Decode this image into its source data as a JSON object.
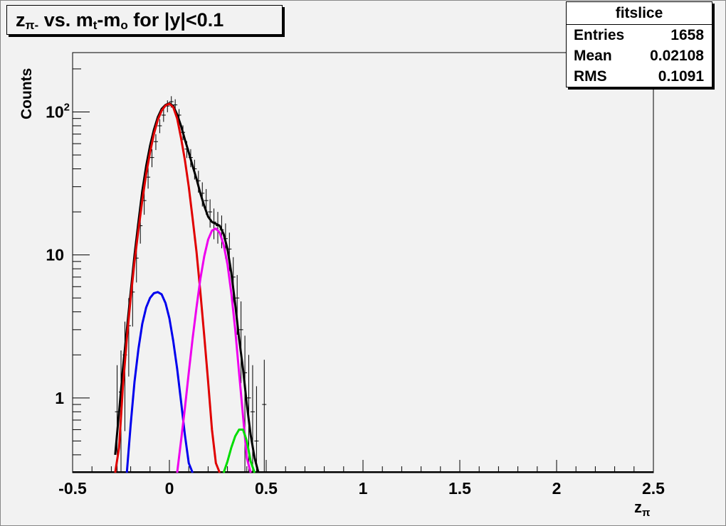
{
  "chart_data": {
    "type": "line",
    "title": {
      "prefix": "z",
      "prefix_sub": "π-",
      "mid": " vs. m",
      "mid_sub": "t",
      "dash": "-m",
      "dash_sub": "o",
      "suffix": " for |y|<0.1"
    },
    "xlabel": "z",
    "xlabel_sub": "π",
    "ylabel": "Counts",
    "xlim": [
      -0.5,
      2.5
    ],
    "ylim": [
      0.3,
      260
    ],
    "yscale": "log",
    "grid": false,
    "x_ticks": [
      {
        "v": -0.5,
        "label": "-0.5"
      },
      {
        "v": 0,
        "label": "0"
      },
      {
        "v": 0.5,
        "label": "0.5"
      },
      {
        "v": 1,
        "label": "1"
      },
      {
        "v": 1.5,
        "label": "1.5"
      },
      {
        "v": 2,
        "label": "2"
      },
      {
        "v": 2.5,
        "label": "2.5"
      }
    ],
    "y_ticks": [
      {
        "v": 1,
        "label": "1"
      },
      {
        "v": 10,
        "label": "10"
      },
      {
        "v": 100,
        "label": "10",
        "sup": "2"
      }
    ],
    "stats": {
      "name": "fitslice",
      "rows": [
        {
          "label": "Entries",
          "value": "1658"
        },
        {
          "label": "Mean",
          "value": "0.02108"
        },
        {
          "label": "RMS",
          "value": "0.1091"
        }
      ]
    },
    "data_points": [
      {
        "x": -0.27,
        "y": 0.8
      },
      {
        "x": -0.25,
        "y": 1.1
      },
      {
        "x": -0.23,
        "y": 2.0
      },
      {
        "x": -0.21,
        "y": 3.2
      },
      {
        "x": -0.19,
        "y": 5.5
      },
      {
        "x": -0.17,
        "y": 9.5
      },
      {
        "x": -0.15,
        "y": 16
      },
      {
        "x": -0.13,
        "y": 24
      },
      {
        "x": -0.11,
        "y": 35
      },
      {
        "x": -0.09,
        "y": 48
      },
      {
        "x": -0.07,
        "y": 62
      },
      {
        "x": -0.05,
        "y": 80
      },
      {
        "x": -0.03,
        "y": 95
      },
      {
        "x": -0.01,
        "y": 110
      },
      {
        "x": 0.01,
        "y": 118
      },
      {
        "x": 0.03,
        "y": 112
      },
      {
        "x": 0.05,
        "y": 95
      },
      {
        "x": 0.07,
        "y": 72
      },
      {
        "x": 0.09,
        "y": 55
      },
      {
        "x": 0.11,
        "y": 48
      },
      {
        "x": 0.13,
        "y": 40
      },
      {
        "x": 0.15,
        "y": 33
      },
      {
        "x": 0.17,
        "y": 27
      },
      {
        "x": 0.19,
        "y": 24
      },
      {
        "x": 0.21,
        "y": 20
      },
      {
        "x": 0.23,
        "y": 17
      },
      {
        "x": 0.25,
        "y": 16
      },
      {
        "x": 0.27,
        "y": 15
      },
      {
        "x": 0.29,
        "y": 13
      },
      {
        "x": 0.31,
        "y": 11
      },
      {
        "x": 0.33,
        "y": 7
      },
      {
        "x": 0.35,
        "y": 5
      },
      {
        "x": 0.37,
        "y": 3
      },
      {
        "x": 0.39,
        "y": 1.5
      },
      {
        "x": 0.41,
        "y": 1.0
      },
      {
        "x": 0.43,
        "y": 0.8
      },
      {
        "x": 0.45,
        "y": 0.5
      },
      {
        "x": 0.49,
        "y": 0.9
      }
    ],
    "series": [
      {
        "color": "#000000",
        "x": [
          -0.28,
          -0.26,
          -0.24,
          -0.22,
          -0.2,
          -0.18,
          -0.16,
          -0.14,
          -0.12,
          -0.1,
          -0.08,
          -0.06,
          -0.04,
          -0.02,
          0,
          0.02,
          0.04,
          0.06,
          0.08,
          0.1,
          0.12,
          0.14,
          0.16,
          0.18,
          0.2,
          0.22,
          0.24,
          0.26,
          0.28,
          0.3,
          0.32,
          0.34,
          0.36,
          0.38,
          0.4,
          0.42,
          0.44,
          0.46
        ],
        "y": [
          0.4,
          0.8,
          1.6,
          3,
          5.5,
          10,
          17,
          28,
          42,
          58,
          75,
          92,
          105,
          112,
          115,
          110,
          96,
          80,
          64,
          52,
          42,
          34,
          27,
          22,
          18.5,
          17,
          16.5,
          16,
          14,
          11,
          7.5,
          4.5,
          2.6,
          1.6,
          0.9,
          0.55,
          0.38,
          0.3
        ]
      },
      {
        "color": "#e00000",
        "x": [
          -0.28,
          -0.26,
          -0.24,
          -0.22,
          -0.2,
          -0.18,
          -0.16,
          -0.14,
          -0.12,
          -0.1,
          -0.08,
          -0.06,
          -0.04,
          -0.02,
          0,
          0.02,
          0.04,
          0.06,
          0.08,
          0.1,
          0.12,
          0.14,
          0.16,
          0.18,
          0.2,
          0.22,
          0.24,
          0.26
        ],
        "y": [
          0.3,
          0.45,
          1.2,
          2.6,
          5,
          9,
          15,
          24,
          37,
          52,
          70,
          88,
          102,
          111,
          114,
          108,
          90,
          66,
          46,
          30,
          18,
          10.5,
          5.5,
          2.7,
          1.3,
          0.6,
          0.35,
          0.3
        ]
      },
      {
        "color": "#0000ee",
        "x": [
          -0.22,
          -0.2,
          -0.18,
          -0.16,
          -0.14,
          -0.12,
          -0.1,
          -0.08,
          -0.06,
          -0.04,
          -0.02,
          0,
          0.02,
          0.04,
          0.06,
          0.08,
          0.1,
          0.12
        ],
        "y": [
          0.3,
          0.65,
          1.3,
          2.2,
          3.3,
          4.3,
          5.0,
          5.4,
          5.5,
          5.3,
          4.6,
          3.6,
          2.5,
          1.6,
          0.95,
          0.55,
          0.35,
          0.3
        ]
      },
      {
        "color": "#ee00ee",
        "x": [
          0.04,
          0.06,
          0.08,
          0.1,
          0.12,
          0.14,
          0.16,
          0.18,
          0.2,
          0.22,
          0.24,
          0.26,
          0.28,
          0.3,
          0.32,
          0.34,
          0.36,
          0.38,
          0.4,
          0.42
        ],
        "y": [
          0.3,
          0.5,
          0.85,
          1.5,
          2.6,
          4.3,
          6.8,
          9.8,
          12.8,
          14.8,
          15.3,
          14.3,
          11.8,
          8.6,
          5.4,
          3.0,
          1.5,
          0.75,
          0.38,
          0.3
        ]
      },
      {
        "color": "#00dd00",
        "x": [
          0.28,
          0.3,
          0.32,
          0.34,
          0.36,
          0.38,
          0.4,
          0.42,
          0.44
        ],
        "y": [
          0.3,
          0.36,
          0.45,
          0.54,
          0.6,
          0.6,
          0.5,
          0.36,
          0.3
        ]
      }
    ]
  }
}
